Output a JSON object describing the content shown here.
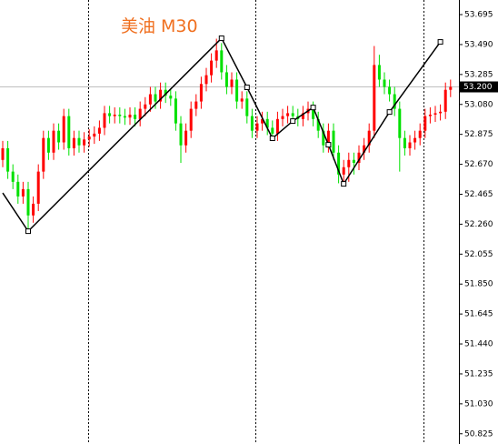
{
  "chart_data": {
    "type": "candlestick",
    "title": "美油 M30",
    "title_color": "#f07020",
    "up_color": "#ff0000",
    "down_color": "#00e000",
    "grid": false,
    "ylim": [
      50.755,
      53.795
    ],
    "yticks": [
      53.695,
      {
        "value": 53.49,
        "label": "53.490"
      },
      53.285,
      {
        "value": 53.08,
        "label": "53.080"
      },
      52.875,
      {
        "value": 52.67,
        "label": "52.670"
      },
      52.465,
      {
        "value": 52.26,
        "label": "52.260"
      },
      52.055,
      {
        "value": 51.85,
        "label": "51.850"
      },
      51.645,
      {
        "value": 51.44,
        "label": "51.440"
      },
      51.235,
      {
        "value": 51.03,
        "label": "51.030"
      },
      50.825
    ],
    "current_price": {
      "value": 53.2,
      "label": "53.200"
    },
    "open": [
      52.7,
      52.78,
      52.62,
      52.55,
      52.45,
      52.5,
      52.32,
      52.4,
      52.62,
      52.85,
      52.75,
      52.9,
      52.82,
      53.0,
      52.78,
      52.85,
      52.8,
      52.84,
      52.86,
      52.88,
      52.92,
      53.02,
      53.0,
      53.01,
      53.0,
      52.99,
      53.01,
      52.98,
      53.05,
      53.08,
      53.15,
      53.1,
      53.18,
      53.14,
      53.12,
      52.95,
      52.8,
      52.9,
      53.05,
      53.1,
      53.22,
      53.28,
      53.38,
      53.45,
      53.3,
      53.2,
      53.25,
      53.1,
      53.12,
      53.0,
      52.9,
      52.95,
      52.98,
      52.92,
      52.88,
      52.98,
      53.0,
      53.02,
      53.0,
      52.98,
      53.02,
      53.05,
      52.98,
      52.9,
      52.8,
      52.9,
      52.75,
      52.6,
      52.65,
      52.7,
      52.68,
      52.75,
      52.8,
      52.9,
      53.35,
      53.25,
      53.2,
      53.15,
      53.05,
      52.85,
      52.78,
      52.82,
      52.85,
      52.9,
      53.0,
      53.01,
      53.02,
      53.03,
      53.18
    ],
    "high": [
      52.83,
      52.83,
      52.67,
      52.6,
      52.55,
      52.55,
      52.45,
      52.67,
      52.9,
      52.9,
      52.95,
      52.95,
      53.05,
      53.05,
      52.9,
      52.9,
      52.89,
      52.91,
      52.93,
      52.97,
      53.07,
      53.07,
      53.06,
      53.06,
      53.05,
      53.06,
      53.06,
      53.1,
      53.13,
      53.2,
      53.2,
      53.23,
      53.23,
      53.19,
      53.17,
      53.0,
      52.95,
      53.1,
      53.15,
      53.27,
      53.33,
      53.43,
      53.53,
      53.5,
      53.35,
      53.3,
      53.3,
      53.17,
      53.17,
      53.05,
      53.0,
      53.03,
      53.03,
      52.97,
      53.03,
      53.05,
      53.07,
      53.07,
      53.05,
      53.07,
      53.1,
      53.1,
      53.03,
      52.95,
      52.95,
      52.95,
      52.8,
      52.7,
      52.75,
      52.75,
      52.8,
      52.85,
      52.95,
      53.48,
      53.42,
      53.3,
      53.25,
      53.2,
      53.1,
      52.9,
      52.87,
      52.9,
      52.95,
      53.05,
      53.06,
      53.07,
      53.08,
      53.23,
      53.25
    ],
    "low": [
      52.65,
      52.57,
      52.5,
      52.4,
      52.4,
      52.22,
      52.27,
      52.35,
      52.57,
      52.7,
      52.7,
      52.77,
      52.77,
      52.73,
      52.73,
      52.75,
      52.75,
      52.79,
      52.81,
      52.83,
      52.87,
      52.95,
      52.95,
      52.95,
      52.94,
      52.94,
      52.93,
      52.93,
      53.0,
      53.03,
      53.05,
      53.05,
      53.09,
      53.07,
      52.9,
      52.68,
      52.75,
      52.85,
      53.0,
      53.05,
      53.17,
      53.23,
      53.33,
      53.25,
      53.15,
      53.15,
      53.05,
      53.05,
      52.95,
      52.85,
      52.85,
      52.9,
      52.87,
      52.83,
      52.83,
      52.93,
      52.95,
      52.95,
      52.93,
      52.93,
      52.97,
      52.93,
      52.85,
      52.75,
      52.75,
      52.7,
      52.54,
      52.55,
      52.55,
      52.6,
      52.63,
      52.7,
      52.75,
      52.85,
      53.2,
      53.15,
      53.1,
      53.0,
      52.62,
      52.73,
      52.73,
      52.77,
      52.8,
      52.85,
      52.95,
      52.96,
      52.97,
      52.98,
      53.13
    ],
    "close": [
      52.78,
      52.62,
      52.55,
      52.45,
      52.5,
      52.32,
      52.4,
      52.62,
      52.85,
      52.75,
      52.9,
      52.82,
      53.0,
      52.78,
      52.85,
      52.8,
      52.84,
      52.86,
      52.88,
      52.92,
      53.02,
      53.0,
      53.01,
      53.0,
      52.99,
      53.01,
      52.98,
      53.05,
      53.08,
      53.15,
      53.1,
      53.18,
      53.14,
      53.12,
      52.95,
      52.8,
      52.9,
      53.05,
      53.1,
      53.22,
      53.28,
      53.38,
      53.45,
      53.3,
      53.2,
      53.25,
      53.1,
      53.12,
      53.0,
      52.9,
      52.95,
      52.98,
      52.92,
      52.88,
      52.98,
      53.0,
      53.02,
      53.0,
      52.98,
      53.02,
      53.05,
      52.98,
      52.9,
      52.8,
      52.9,
      52.75,
      52.6,
      52.65,
      52.7,
      52.68,
      52.75,
      52.8,
      52.9,
      53.35,
      53.25,
      53.2,
      53.15,
      53.05,
      52.85,
      52.78,
      52.82,
      52.85,
      52.9,
      53.0,
      53.01,
      53.02,
      53.03,
      53.18,
      53.2
    ],
    "zigzag": {
      "color": "#000000",
      "x": [
        0,
        5,
        43,
        48,
        53,
        57,
        61,
        64,
        67,
        76,
        86
      ],
      "values": [
        52.474,
        52.212,
        53.533,
        53.197,
        52.848,
        52.966,
        53.059,
        52.804,
        52.536,
        53.028,
        53.508
      ]
    }
  }
}
